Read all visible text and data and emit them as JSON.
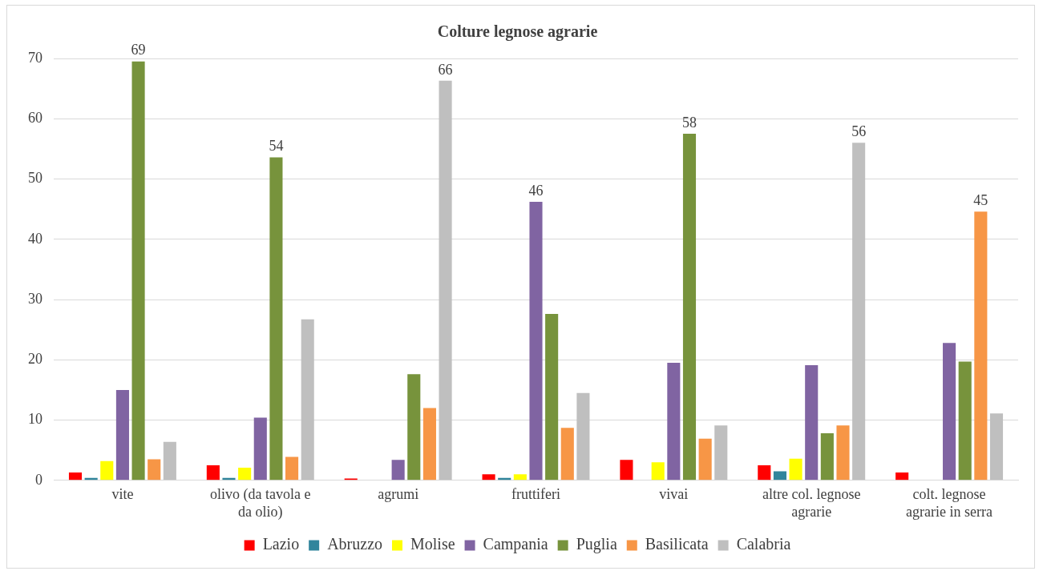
{
  "chart_data": {
    "type": "bar",
    "title": "Colture legnose agrarie",
    "categories": [
      "vite",
      "olivo (da tavola e da olio)",
      "agrumi",
      "fruttiferi",
      "vivai",
      "altre col. legnose agrarie",
      "colt. legnose agrarie in serra"
    ],
    "series": [
      {
        "name": "Lazio",
        "color": "#ff0000",
        "values": [
          1.3,
          2.5,
          0.3,
          1.0,
          3.4,
          2.5,
          1.3
        ]
      },
      {
        "name": "Abruzzo",
        "color": "#31859c",
        "values": [
          0.4,
          0.4,
          0,
          0.4,
          0,
          1.5,
          0
        ]
      },
      {
        "name": "Molise",
        "color": "#ffff00",
        "values": [
          3.2,
          2.1,
          0,
          1.0,
          3.0,
          3.6,
          0
        ]
      },
      {
        "name": "Campania",
        "color": "#8064a2",
        "values": [
          15,
          10.4,
          3.4,
          46.2,
          19.5,
          19.1,
          22.8
        ],
        "value_labels": [
          null,
          null,
          null,
          "46",
          null,
          null,
          null
        ]
      },
      {
        "name": "Puglia",
        "color": "#77933c",
        "values": [
          69.5,
          53.6,
          17.6,
          27.6,
          57.5,
          7.8,
          19.7
        ],
        "value_labels": [
          "69",
          "54",
          null,
          null,
          "58",
          null,
          null
        ]
      },
      {
        "name": "Basilicata",
        "color": "#f79646",
        "values": [
          3.5,
          3.9,
          12,
          8.7,
          6.9,
          9.1,
          44.6
        ],
        "value_labels": [
          null,
          null,
          null,
          null,
          null,
          null,
          "45"
        ]
      },
      {
        "name": "Calabria",
        "color": "#bfbfbf",
        "values": [
          6.4,
          26.7,
          66.3,
          14.5,
          9.1,
          56,
          11.1
        ],
        "value_labels": [
          null,
          null,
          "66",
          null,
          null,
          "56",
          null
        ]
      }
    ],
    "ylim": [
      0,
      70
    ],
    "yticks": [
      0,
      10,
      20,
      30,
      40,
      50,
      60,
      70
    ],
    "grid": "y",
    "legend": "bottom"
  }
}
